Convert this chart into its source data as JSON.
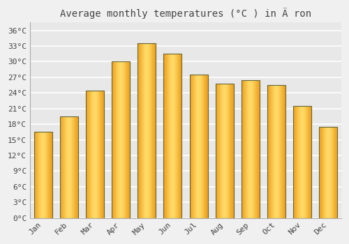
{
  "months": [
    "Jan",
    "Feb",
    "Mar",
    "Apr",
    "May",
    "Jun",
    "Jul",
    "Aug",
    "Sep",
    "Oct",
    "Nov",
    "Dec"
  ],
  "temperatures": [
    16.5,
    19.5,
    24.5,
    30.0,
    33.5,
    31.5,
    27.5,
    25.8,
    26.5,
    25.5,
    21.5,
    17.5
  ],
  "title": "Average monthly temperatures (°C ) in Ä ron",
  "yticks": [
    0,
    3,
    6,
    9,
    12,
    15,
    18,
    21,
    24,
    27,
    30,
    33,
    36
  ],
  "ytick_labels": [
    "0°C",
    "3°C",
    "6°C",
    "9°C",
    "12°C",
    "15°C",
    "18°C",
    "21°C",
    "24°C",
    "27°C",
    "30°C",
    "33°C",
    "36°C"
  ],
  "ylim": [
    0,
    37.5
  ],
  "background_color": "#f0f0f0",
  "plot_bg_color": "#e8e8e8",
  "grid_color": "#ffffff",
  "bar_color_center": "#FFD966",
  "bar_color_edge": "#E8920A",
  "bar_border_color": "#666633",
  "title_fontsize": 10,
  "tick_fontsize": 8,
  "font_color": "#444444",
  "bar_width": 0.7
}
